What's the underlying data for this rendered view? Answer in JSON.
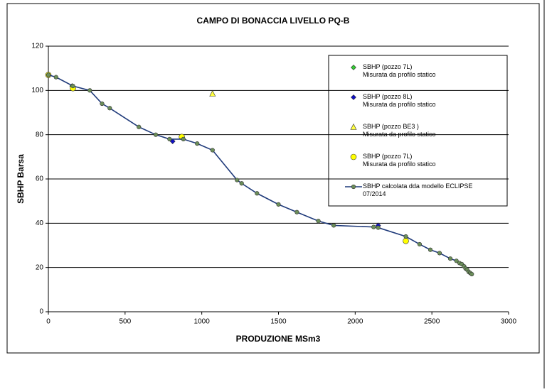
{
  "chart_data": {
    "type": "scatter",
    "title": "CAMPO DI BONACCIA LIVELLO PQ-B",
    "x_label": "PRODUZIONE MSm3",
    "y_label": "SBHP Barsa",
    "xlim": [
      0,
      3000
    ],
    "xticks": [
      0,
      500,
      1000,
      1500,
      2000,
      2500,
      3000
    ],
    "ylim": [
      0,
      120
    ],
    "yticks": [
      0,
      20,
      40,
      60,
      80,
      100,
      120
    ],
    "grid": true,
    "legend": "upper right",
    "series": [
      {
        "name": "SBHP  (pozzo 7L)\nMisurata da profilo statico",
        "marker": "diamond",
        "color": "#33cc33",
        "line": false,
        "x": [
          155
        ],
        "values": [
          102
        ]
      },
      {
        "name": "SBHP  (pozzo 8L)\nMisurata da profilo statico",
        "marker": "diamond",
        "color": "#1010c8",
        "line": false,
        "x": [
          810,
          2150
        ],
        "values": [
          77,
          39
        ]
      },
      {
        "name": "SBHP  (pozzo BE3 )\nMisurata da profilo statico",
        "marker": "triangle",
        "color": "#ffff40",
        "line": false,
        "x": [
          1070
        ],
        "values": [
          98.5
        ]
      },
      {
        "name": "SBHP  (pozzo 7L)\nMisurata da profilo statico",
        "marker": "circle",
        "color": "#ffff00",
        "line": false,
        "x": [
          0,
          160,
          870,
          2330
        ],
        "values": [
          107,
          101,
          79,
          32
        ]
      },
      {
        "name": "SBHP calcolata dda modello ECLIPSE\n07/2014",
        "marker": "dot",
        "color": "#1f3a7a",
        "marker_color": "#6b8e5a",
        "line": true,
        "x": [
          0,
          50,
          160,
          270,
          350,
          400,
          590,
          700,
          790,
          880,
          970,
          1070,
          1230,
          1260,
          1360,
          1500,
          1620,
          1760,
          1860,
          2120,
          2150,
          2330,
          2420,
          2490,
          2550,
          2620,
          2660,
          2680,
          2695,
          2710,
          2720,
          2730,
          2740,
          2750,
          2760
        ],
        "values": [
          107,
          106,
          102,
          100,
          94,
          92,
          83.5,
          80,
          78,
          78,
          76,
          73,
          59.5,
          58,
          53.5,
          48.5,
          45,
          41,
          39,
          38.3,
          38,
          34,
          30.5,
          28,
          26.5,
          24,
          23,
          22,
          21.5,
          20.5,
          19.5,
          19,
          18,
          17.5,
          17
        ]
      }
    ]
  }
}
